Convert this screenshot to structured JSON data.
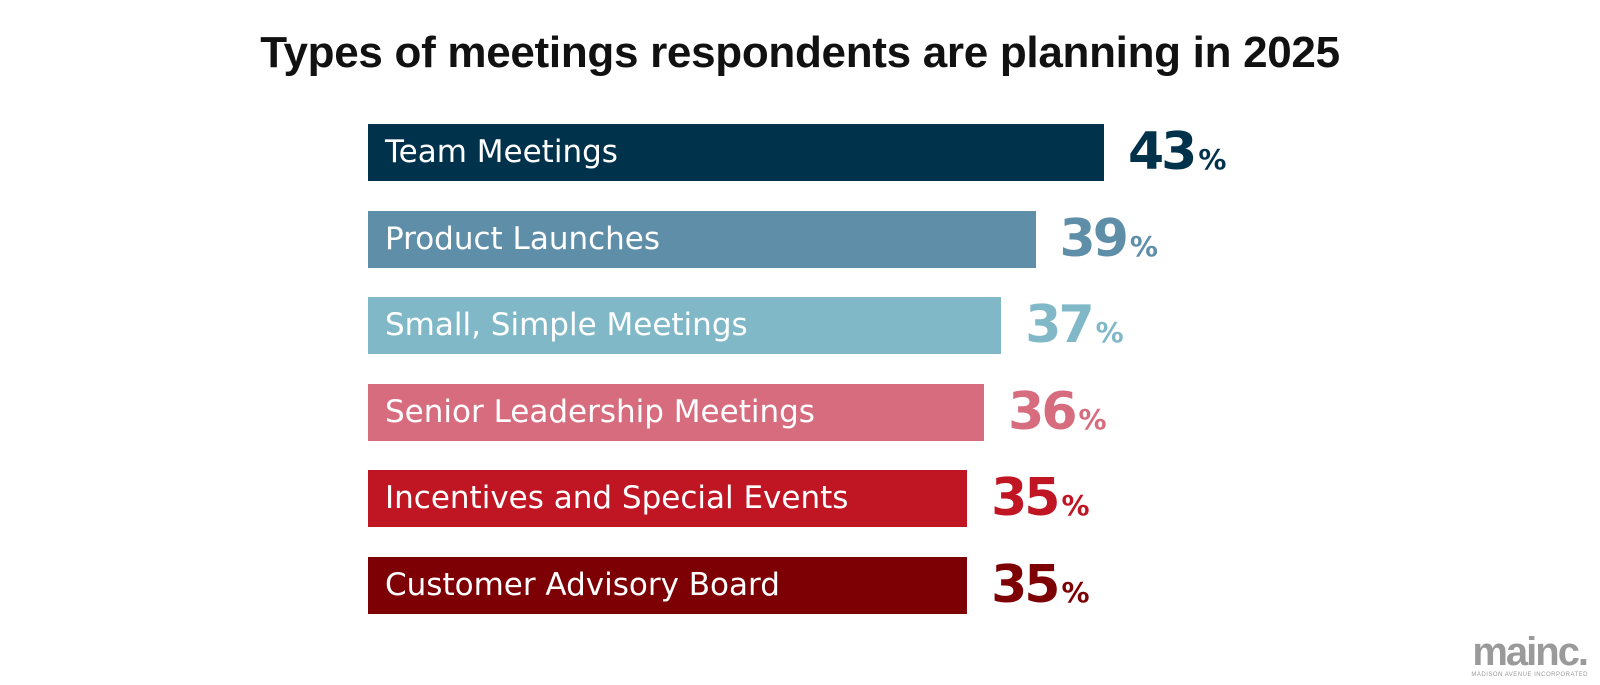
{
  "chart_data": {
    "type": "bar",
    "orientation": "horizontal",
    "title": "Types of meetings respondents are planning in 2025",
    "unit": "%",
    "categories": [
      "Team Meetings",
      "Product Launches",
      "Small, Simple Meetings",
      "Senior Leadership Meetings",
      "Incentives and Special Events",
      "Customer Advisory Board"
    ],
    "values": [
      43,
      39,
      37,
      36,
      35,
      35
    ],
    "colors": [
      "#01324b",
      "#5f8ea8",
      "#80b8c8",
      "#d66c7e",
      "#c01522",
      "#7d0104"
    ],
    "xlim": [
      0,
      43
    ],
    "grid": false,
    "legend": "none"
  },
  "logo": {
    "text": "mainc.",
    "subtext": "MADISON AVENUE INCORPORATED"
  }
}
